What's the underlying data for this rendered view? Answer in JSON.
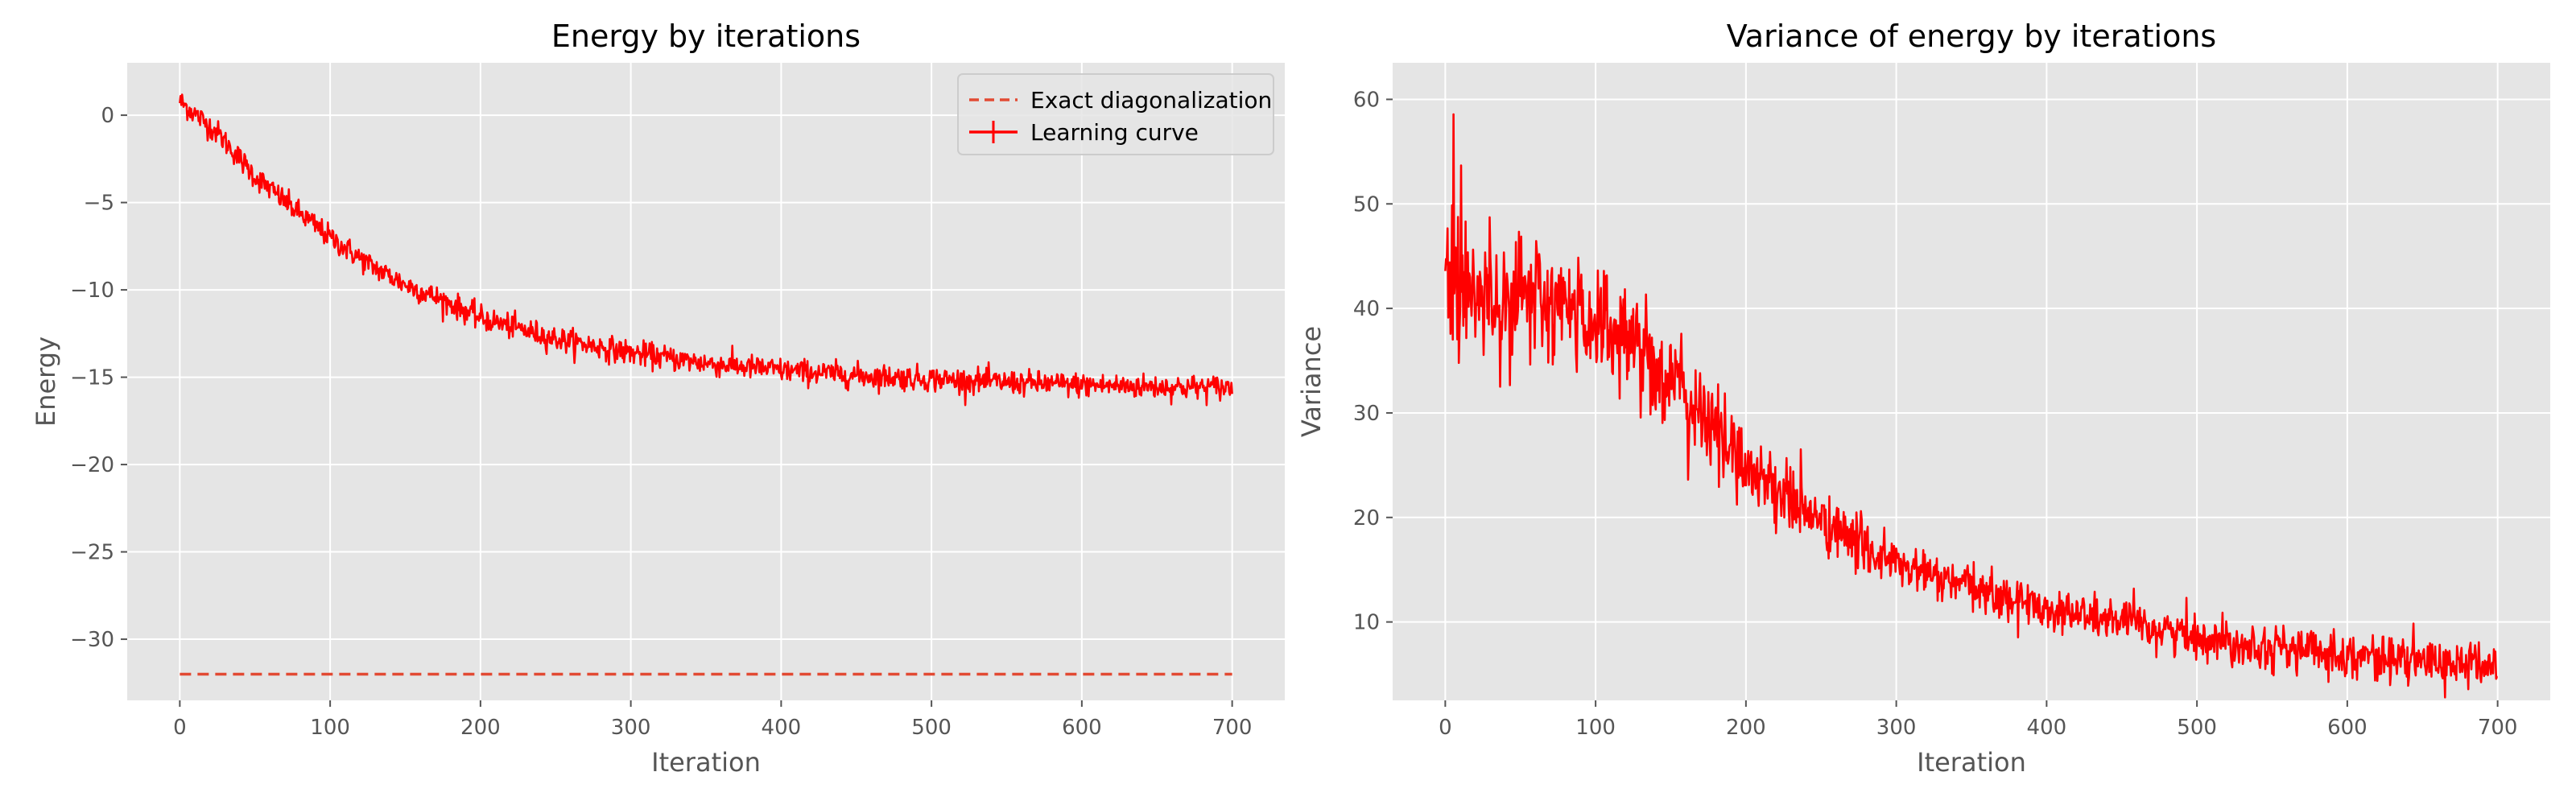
{
  "colors": {
    "background": "#ffffff",
    "axes_face": "#e5e5e5",
    "grid": "#ffffff",
    "text": "#555555",
    "series_red": "#ff0000",
    "exact_line": "#e24a33"
  },
  "chart_data": [
    {
      "type": "line",
      "title": "Energy by iterations",
      "xlabel": "Iteration",
      "ylabel": "Energy",
      "xlim": [
        -35,
        735
      ],
      "ylim": [
        -33.5,
        3
      ],
      "xticks": [
        0,
        100,
        200,
        300,
        400,
        500,
        600,
        700
      ],
      "yticks": [
        0,
        -5,
        -10,
        -15,
        -20,
        -25,
        -30
      ],
      "ytick_labels": [
        "0",
        "−5",
        "−10",
        "−15",
        "−20",
        "−25",
        "−30"
      ],
      "grid": true,
      "legend": {
        "position": "top-right",
        "entries": [
          "Exact diagonalization",
          "Learning curve"
        ]
      },
      "series": [
        {
          "name": "Exact diagonalization",
          "style": "dashed",
          "x": [
            0,
            700
          ],
          "y": [
            -32.0,
            -32.0
          ]
        },
        {
          "name": "Learning curve",
          "style": "noisy",
          "x": [
            0,
            25,
            50,
            75,
            100,
            125,
            150,
            175,
            200,
            250,
            300,
            350,
            400,
            450,
            500,
            550,
            600,
            650,
            700
          ],
          "y": [
            0.8,
            -1.0,
            -3.5,
            -5.3,
            -7.0,
            -8.5,
            -9.7,
            -10.6,
            -11.6,
            -12.8,
            -13.6,
            -14.2,
            -14.6,
            -14.9,
            -15.1,
            -15.3,
            -15.45,
            -15.55,
            -15.6
          ],
          "noise": 0.35
        }
      ]
    },
    {
      "type": "line",
      "title": "Variance of energy by iterations",
      "xlabel": "Iteration",
      "ylabel": "Variance",
      "xlim": [
        -35,
        735
      ],
      "ylim": [
        2.5,
        63.5
      ],
      "xticks": [
        0,
        100,
        200,
        300,
        400,
        500,
        600,
        700
      ],
      "yticks": [
        10,
        20,
        30,
        40,
        50,
        60
      ],
      "ytick_labels": [
        "10",
        "20",
        "30",
        "40",
        "50",
        "60"
      ],
      "grid": true,
      "series": [
        {
          "style": "noisy",
          "x": [
            0,
            5,
            25,
            50,
            75,
            100,
            125,
            150,
            175,
            200,
            250,
            300,
            350,
            400,
            450,
            500,
            550,
            600,
            650,
            700
          ],
          "y": [
            45,
            42,
            41.5,
            41,
            40,
            39,
            37,
            33,
            29,
            25,
            19.5,
            15.5,
            13.2,
            11.3,
            10,
            8.6,
            7.6,
            6.9,
            6.2,
            5.8
          ],
          "noise": 3.0
        }
      ]
    }
  ]
}
